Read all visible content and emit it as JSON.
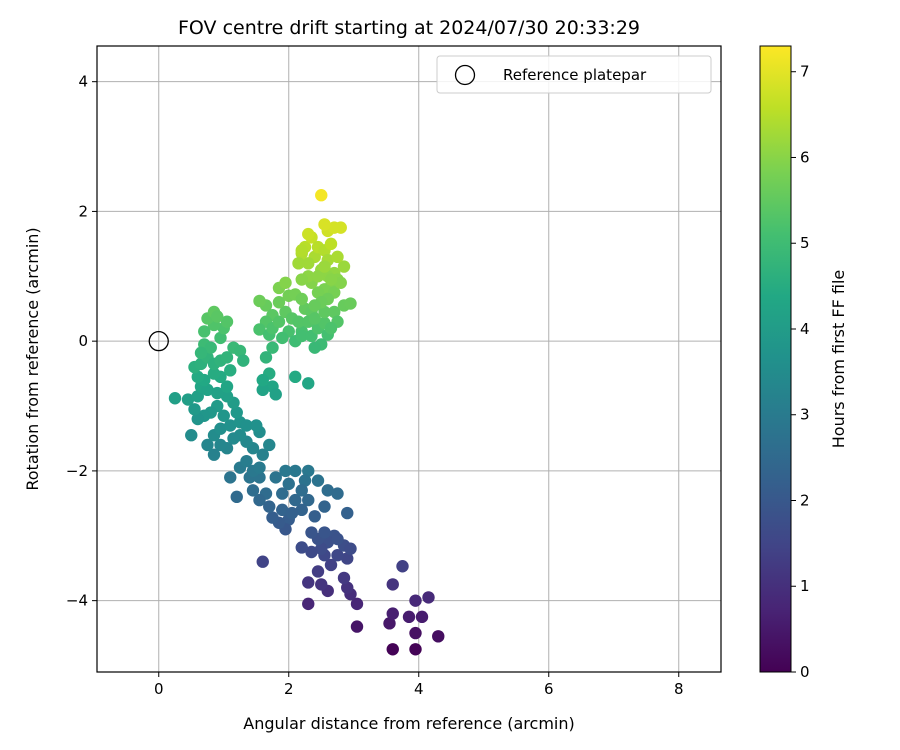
{
  "chart_data": {
    "type": "scatter",
    "title": "FOV centre drift starting at 2024/07/30 20:33:29",
    "xlabel": "Angular distance from reference (arcmin)",
    "ylabel": "Rotation from reference (arcmin)",
    "xlim": [
      -0.95,
      8.65
    ],
    "ylim": [
      -5.1,
      4.55
    ],
    "xticks": [
      0,
      2,
      4,
      6,
      8
    ],
    "yticks": [
      -4,
      -2,
      0,
      2,
      4
    ],
    "xtick_labels": [
      "0",
      "2",
      "4",
      "6",
      "8"
    ],
    "ytick_labels": [
      "−4",
      "−2",
      "0",
      "2",
      "4"
    ],
    "grid": true,
    "legend": {
      "position": "top-right",
      "entries": [
        "Reference platepar"
      ]
    },
    "colorbar": {
      "label": "Hours from first FF file",
      "colormap": "viridis",
      "range": [
        0,
        7.3
      ],
      "ticks": [
        0,
        1,
        2,
        3,
        4,
        5,
        6,
        7
      ],
      "tick_labels": [
        "0",
        "1",
        "2",
        "3",
        "4",
        "5",
        "6",
        "7"
      ]
    },
    "reference_point": {
      "name": "Reference platepar",
      "x": 0,
      "y": 0
    },
    "series": [
      {
        "name": "FOV centre drift",
        "columns": [
          "x",
          "y",
          "hours"
        ],
        "points": [
          [
            3.6,
            -4.75
          ],
          [
            3.95,
            -4.75
          ],
          [
            4.3,
            -4.55
          ],
          [
            3.95,
            -4.5
          ],
          [
            4.05,
            -4.25
          ],
          [
            3.85,
            -4.25
          ],
          [
            3.55,
            -4.35
          ],
          [
            3.6,
            -4.2
          ],
          [
            3.95,
            -4.0
          ],
          [
            4.15,
            -3.95
          ],
          [
            3.6,
            -3.75
          ],
          [
            3.75,
            -3.47
          ],
          [
            3.05,
            -4.4
          ],
          [
            3.05,
            -4.05
          ],
          [
            2.95,
            -3.9
          ],
          [
            2.9,
            -3.8
          ],
          [
            2.85,
            -3.65
          ],
          [
            2.9,
            -3.35
          ],
          [
            2.6,
            -3.85
          ],
          [
            2.5,
            -3.75
          ],
          [
            2.3,
            -4.05
          ],
          [
            2.3,
            -3.72
          ],
          [
            2.45,
            -3.55
          ],
          [
            2.65,
            -3.45
          ],
          [
            2.55,
            -3.3
          ],
          [
            2.75,
            -3.3
          ],
          [
            2.85,
            -3.15
          ],
          [
            2.9,
            -2.65
          ],
          [
            2.7,
            -3.0
          ],
          [
            2.6,
            -3.1
          ],
          [
            2.5,
            -3.2
          ],
          [
            2.35,
            -3.25
          ],
          [
            2.2,
            -3.18
          ],
          [
            2.45,
            -3.05
          ],
          [
            2.75,
            -3.05
          ],
          [
            2.95,
            -3.2
          ],
          [
            2.55,
            -2.95
          ],
          [
            2.35,
            -2.95
          ],
          [
            2.4,
            -2.7
          ],
          [
            2.55,
            -2.55
          ],
          [
            2.6,
            -2.3
          ],
          [
            2.75,
            -2.35
          ],
          [
            2.3,
            -2.45
          ],
          [
            2.2,
            -2.6
          ],
          [
            2.1,
            -2.45
          ],
          [
            2.0,
            -2.75
          ],
          [
            1.95,
            -2.9
          ],
          [
            1.85,
            -2.8
          ],
          [
            1.75,
            -2.72
          ],
          [
            1.7,
            -2.55
          ],
          [
            1.9,
            -2.6
          ],
          [
            2.0,
            -2.2
          ],
          [
            2.1,
            -2.0
          ],
          [
            1.95,
            -2.0
          ],
          [
            1.8,
            -2.1
          ],
          [
            1.65,
            -2.35
          ],
          [
            1.55,
            -2.45
          ],
          [
            1.45,
            -2.3
          ],
          [
            1.4,
            -2.1
          ],
          [
            1.55,
            -2.1
          ],
          [
            2.3,
            -2.0
          ],
          [
            2.45,
            -2.15
          ],
          [
            2.25,
            -2.15
          ],
          [
            1.9,
            -2.35
          ],
          [
            2.05,
            -2.65
          ],
          [
            2.2,
            -2.3
          ],
          [
            1.6,
            -3.4
          ],
          [
            1.2,
            -2.4
          ],
          [
            1.1,
            -2.1
          ],
          [
            1.25,
            -1.95
          ],
          [
            1.35,
            -1.85
          ],
          [
            1.45,
            -2.0
          ],
          [
            1.55,
            -1.95
          ],
          [
            1.6,
            -1.75
          ],
          [
            1.7,
            -1.6
          ],
          [
            1.45,
            -1.65
          ],
          [
            1.35,
            -1.55
          ],
          [
            1.25,
            -1.45
          ],
          [
            1.15,
            -1.5
          ],
          [
            1.05,
            -1.65
          ],
          [
            0.95,
            -1.6
          ],
          [
            0.85,
            -1.75
          ],
          [
            0.75,
            -1.6
          ],
          [
            0.85,
            -1.45
          ],
          [
            0.95,
            -1.35
          ],
          [
            1.1,
            -1.3
          ],
          [
            1.25,
            -1.25
          ],
          [
            1.35,
            -1.3
          ],
          [
            1.55,
            -1.4
          ],
          [
            1.5,
            -1.3
          ],
          [
            1.2,
            -1.1
          ],
          [
            1.15,
            -0.95
          ],
          [
            1.05,
            -0.85
          ],
          [
            0.9,
            -1.0
          ],
          [
            0.8,
            -1.1
          ],
          [
            0.7,
            -1.15
          ],
          [
            0.6,
            -1.2
          ],
          [
            0.5,
            -1.45
          ],
          [
            0.55,
            -1.05
          ],
          [
            0.45,
            -0.9
          ],
          [
            0.25,
            -0.88
          ],
          [
            0.6,
            -0.85
          ],
          [
            0.65,
            -0.7
          ],
          [
            0.75,
            -0.75
          ],
          [
            0.9,
            -0.8
          ],
          [
            1.05,
            -0.7
          ],
          [
            0.95,
            -0.55
          ],
          [
            0.85,
            -0.5
          ],
          [
            0.7,
            -0.6
          ],
          [
            0.6,
            -0.55
          ],
          [
            0.55,
            -0.4
          ],
          [
            0.65,
            -0.35
          ],
          [
            0.75,
            -0.25
          ],
          [
            0.85,
            -0.35
          ],
          [
            0.95,
            -0.3
          ],
          [
            1.05,
            -0.25
          ],
          [
            1.15,
            -0.1
          ],
          [
            1.25,
            -0.15
          ],
          [
            1.3,
            -0.3
          ],
          [
            0.7,
            -0.05
          ],
          [
            0.8,
            -0.1
          ],
          [
            0.95,
            0.05
          ],
          [
            1.0,
            0.2
          ],
          [
            1.05,
            0.3
          ],
          [
            0.85,
            0.25
          ],
          [
            0.75,
            0.35
          ],
          [
            0.85,
            0.45
          ],
          [
            0.9,
            0.38
          ],
          [
            0.7,
            0.15
          ],
          [
            0.65,
            -0.18
          ],
          [
            1.1,
            -0.45
          ],
          [
            1.0,
            -1.15
          ],
          [
            1.65,
            0.55
          ],
          [
            1.55,
            0.62
          ],
          [
            1.75,
            0.4
          ],
          [
            1.65,
            0.3
          ],
          [
            1.55,
            0.18
          ],
          [
            1.7,
            0.1
          ],
          [
            1.75,
            -0.1
          ],
          [
            1.65,
            -0.25
          ],
          [
            1.7,
            -0.5
          ],
          [
            1.75,
            -0.7
          ],
          [
            1.8,
            -0.82
          ],
          [
            1.6,
            -0.75
          ],
          [
            1.6,
            -0.6
          ],
          [
            1.75,
            0.2
          ],
          [
            1.85,
            0.3
          ],
          [
            1.95,
            0.45
          ],
          [
            2.05,
            0.35
          ],
          [
            2.0,
            0.15
          ],
          [
            1.9,
            0.05
          ],
          [
            2.1,
            0.0
          ],
          [
            2.2,
            0.15
          ],
          [
            2.15,
            0.3
          ],
          [
            2.25,
            0.5
          ],
          [
            2.35,
            0.45
          ],
          [
            2.3,
            0.3
          ],
          [
            2.2,
            0.08
          ],
          [
            2.35,
            0.08
          ],
          [
            2.45,
            0.2
          ],
          [
            2.55,
            0.28
          ],
          [
            2.6,
            0.1
          ],
          [
            2.5,
            -0.05
          ],
          [
            2.4,
            -0.1
          ],
          [
            2.3,
            -0.65
          ],
          [
            2.1,
            -0.55
          ],
          [
            1.85,
            0.82
          ],
          [
            1.95,
            0.9
          ],
          [
            1.85,
            0.6
          ],
          [
            2.0,
            0.7
          ],
          [
            2.1,
            0.72
          ],
          [
            2.2,
            0.65
          ],
          [
            2.4,
            0.35
          ],
          [
            2.55,
            0.45
          ],
          [
            2.7,
            0.45
          ],
          [
            2.75,
            0.3
          ],
          [
            2.65,
            0.2
          ],
          [
            2.85,
            0.55
          ],
          [
            2.95,
            0.58
          ],
          [
            2.4,
            1.3
          ],
          [
            2.3,
            1.2
          ],
          [
            2.2,
            1.35
          ],
          [
            2.25,
            1.45
          ],
          [
            2.35,
            1.6
          ],
          [
            2.45,
            1.45
          ],
          [
            2.55,
            1.4
          ],
          [
            2.6,
            1.25
          ],
          [
            2.7,
            1.05
          ],
          [
            2.75,
            0.95
          ],
          [
            2.65,
            0.85
          ],
          [
            2.55,
            0.8
          ],
          [
            2.45,
            0.75
          ],
          [
            2.35,
            0.9
          ],
          [
            2.3,
            1.0
          ],
          [
            2.5,
            1.1
          ],
          [
            2.6,
            1.0
          ],
          [
            2.7,
            0.75
          ],
          [
            2.6,
            0.65
          ],
          [
            2.5,
            0.6
          ],
          [
            2.4,
            0.55
          ],
          [
            2.8,
            0.9
          ],
          [
            2.85,
            1.15
          ],
          [
            2.75,
            1.3
          ],
          [
            2.65,
            1.5
          ],
          [
            2.6,
            1.7
          ],
          [
            2.7,
            1.75
          ],
          [
            2.8,
            1.75
          ],
          [
            2.55,
            1.8
          ],
          [
            2.5,
            2.25
          ],
          [
            2.3,
            1.65
          ],
          [
            2.2,
            1.4
          ],
          [
            2.15,
            1.2
          ],
          [
            2.2,
            0.95
          ],
          [
            2.45,
            1.0
          ],
          [
            2.55,
            1.15
          ],
          [
            2.65,
            0.95
          ]
        ]
      }
    ]
  }
}
